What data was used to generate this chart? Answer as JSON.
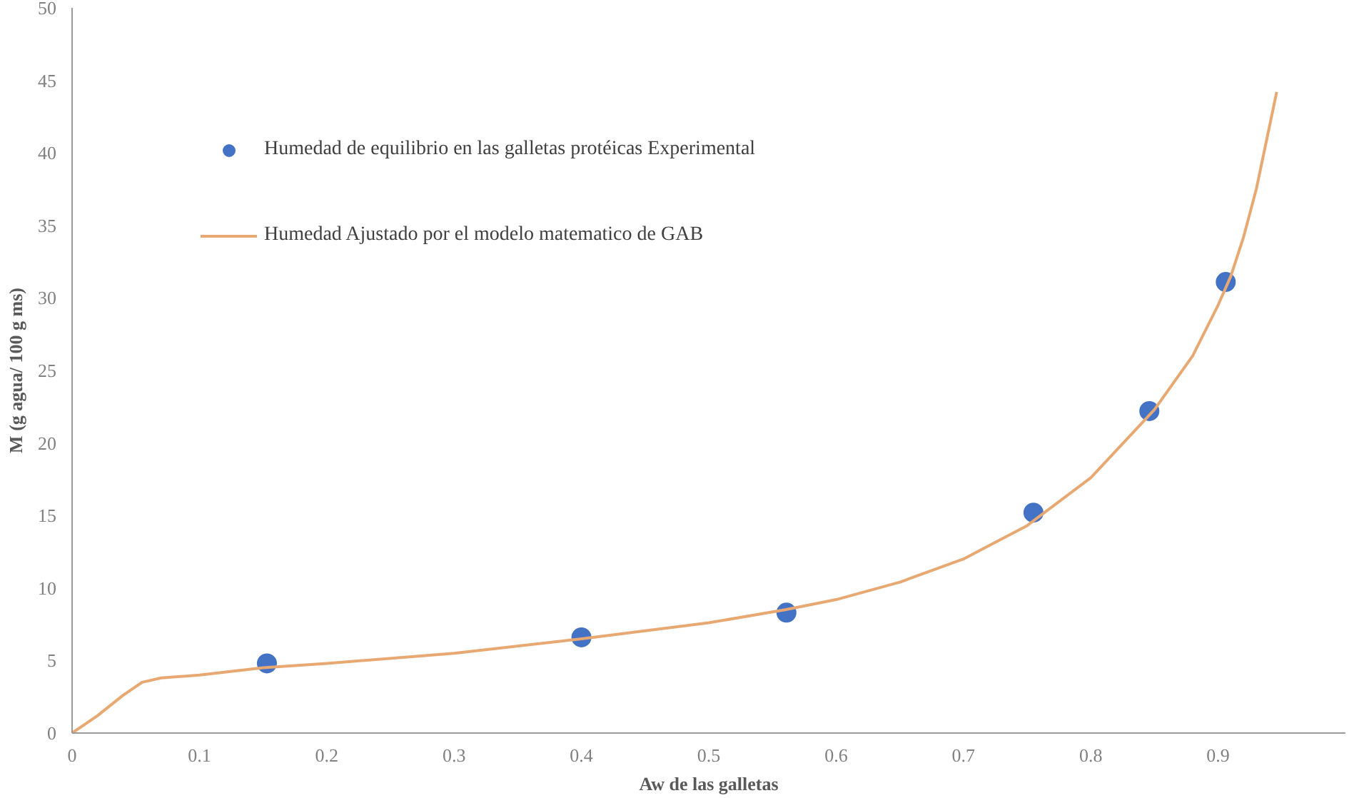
{
  "chart_data": {
    "type": "scatter",
    "xlabel": "Aw de las galletas",
    "ylabel": "M (g agua/ 100 g ms)",
    "xlim": [
      0,
      1
    ],
    "xticks": [
      0,
      0.1,
      0.2,
      0.3,
      0.4,
      0.5,
      0.6,
      0.7,
      0.8,
      0.9
    ],
    "ylim": [
      0,
      50
    ],
    "yticks": [
      0,
      5,
      10,
      15,
      20,
      25,
      30,
      35,
      40,
      45,
      50
    ],
    "grid": false,
    "legend": "top left",
    "series": [
      {
        "name": "Humedad de equilibrio en las galletas protéicas Experimental",
        "marker": "circle",
        "color": "#4472c4",
        "x": [
          0.153,
          0.4,
          0.561,
          0.755,
          0.846,
          0.906
        ],
        "values": [
          4.8,
          6.6,
          8.3,
          15.2,
          22.2,
          31.1
        ]
      },
      {
        "name": "Humedad Ajustado por el modelo matematico de GAB",
        "type": "line",
        "marker": "none",
        "color": "#e8a872",
        "x": [
          0,
          0.02,
          0.04,
          0.055,
          0.07,
          0.1,
          0.15,
          0.2,
          0.3,
          0.4,
          0.5,
          0.56,
          0.6,
          0.65,
          0.7,
          0.75,
          0.8,
          0.85,
          0.88,
          0.9,
          0.91,
          0.92,
          0.93,
          0.946
        ],
        "values": [
          0,
          1.2,
          2.6,
          3.5,
          3.8,
          4.0,
          4.5,
          4.8,
          5.5,
          6.5,
          7.6,
          8.5,
          9.2,
          10.4,
          12.0,
          14.3,
          17.6,
          22.3,
          26,
          29.5,
          31.5,
          34.2,
          37.5,
          44.2
        ]
      }
    ]
  }
}
